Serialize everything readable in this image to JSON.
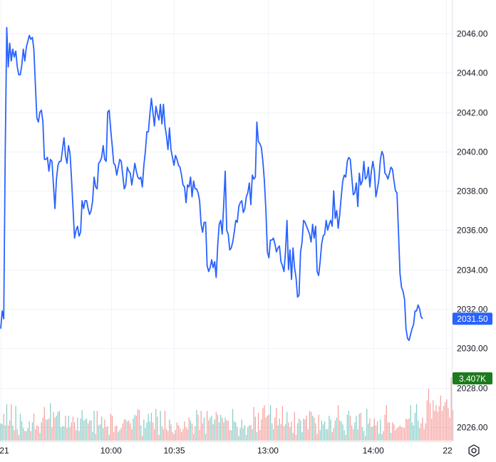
{
  "chart_data": {
    "type": "line",
    "title": "",
    "xlabel": "",
    "ylabel": "",
    "ylim": [
      2025.0,
      2047.5
    ],
    "y_ticks": [
      "2026.00",
      "2028.00",
      "2030.00",
      "2032.00",
      "2034.00",
      "2036.00",
      "2038.00",
      "2040.00",
      "2042.00",
      "2044.00",
      "2046.00"
    ],
    "x_ticks": [
      "21",
      "10:00",
      "10:35",
      "13:00",
      "14:00",
      "22"
    ],
    "grid": true,
    "legend": "none",
    "series": [
      {
        "kind": "price",
        "color": "#2962ff",
        "values": [
          2031.0,
          2031.9,
          2031.5,
          2040.0,
          2046.3,
          2044.3,
          2045.5,
          2044.6,
          2045.2,
          2044.8,
          2045.1,
          2044.3,
          2043.9,
          2043.9,
          2044.4,
          2045.2,
          2044.6,
          2045.3,
          2045.6,
          2045.9,
          2045.7,
          2045.8,
          2045.2,
          2043.4,
          2041.7,
          2041.5,
          2042.0,
          2042.1,
          2041.5,
          2039.6,
          2039.6,
          2039.7,
          2039.0,
          2039.6,
          2039.5,
          2038.3,
          2037.1,
          2038.6,
          2039.3,
          2039.5,
          2039.5,
          2040.1,
          2040.7,
          2039.8,
          2039.4,
          2040.3,
          2039.9,
          2038.6,
          2037.1,
          2035.6,
          2036.0,
          2036.2,
          2035.7,
          2035.9,
          2037.5,
          2037.1,
          2037.5,
          2037.5,
          2037.1,
          2036.8,
          2037.0,
          2037.5,
          2038.7,
          2038.2,
          2038.1,
          2039.4,
          2039.5,
          2039.7,
          2040.3,
          2039.6,
          2039.5,
          2042.0,
          2042.1,
          2041.1,
          2040.3,
          2039.4,
          2039.3,
          2038.8,
          2039.2,
          2039.6,
          2039.5,
          2038.8,
          2038.1,
          2038.3,
          2039.2,
          2039.0,
          2038.9,
          2038.3,
          2038.8,
          2039.4,
          2039.0,
          2038.7,
          2038.6,
          2038.7,
          2038.2,
          2039.3,
          2040.0,
          2041.0,
          2041.0,
          2041.9,
          2042.7,
          2042.0,
          2041.3,
          2042.3,
          2041.9,
          2041.6,
          2042.4,
          2041.4,
          2042.4,
          2041.3,
          2040.8,
          2040.1,
          2041.2,
          2040.1,
          2039.7,
          2039.3,
          2039.8,
          2039.6,
          2039.3,
          2039.2,
          2038.8,
          2038.3,
          2038.2,
          2037.4,
          2038.3,
          2038.2,
          2038.7,
          2037.7,
          2038.5,
          2038.1,
          2038.1,
          2037.9,
          2037.5,
          2036.3,
          2035.9,
          2036.4,
          2036.4,
          2034.2,
          2033.9,
          2034.1,
          2034.5,
          2034.1,
          2034.4,
          2033.6,
          2035.2,
          2036.3,
          2036.5,
          2035.8,
          2037.3,
          2039.0,
          2036.0,
          2035.8,
          2035.0,
          2035.1,
          2035.4,
          2035.9,
          2036.5,
          2036.4,
          2037.2,
          2037.4,
          2037.5,
          2036.9,
          2037.1,
          2037.7,
          2037.9,
          2038.4,
          2037.3,
          2038.8,
          2038.6,
          2038.7,
          2041.5,
          2040.5,
          2040.4,
          2040.2,
          2039.5,
          2038.5,
          2037.0,
          2034.9,
          2034.6,
          2035.5,
          2035.5,
          2035.6,
          2035.3,
          2034.9,
          2035.1,
          2035.2,
          2034.4,
          2034.2,
          2033.9,
          2034.9,
          2036.5,
          2034.0,
          2035.0,
          2033.5,
          2035.1,
          2034.1,
          2033.6,
          2032.6,
          2032.7,
          2034.9,
          2035.4,
          2036.5,
          2036.4,
          2036.2,
          2036.0,
          2035.8,
          2035.4,
          2036.3,
          2035.6,
          2036.2,
          2033.9,
          2033.7,
          2034.4,
          2035.3,
          2035.7,
          2035.8,
          2036.5,
          2036.0,
          2036.3,
          2036.5,
          2036.2,
          2038.0,
          2036.6,
          2037.0,
          2036.1,
          2036.8,
          2037.7,
          2038.5,
          2038.8,
          2038.7,
          2039.5,
          2039.7,
          2039.6,
          2038.7,
          2037.8,
          2037.9,
          2038.4,
          2037.2,
          2038.9,
          2038.3,
          2038.5,
          2039.5,
          2038.6,
          2038.7,
          2039.2,
          2038.2,
          2039.0,
          2039.5,
          2039.0,
          2037.7,
          2038.1,
          2038.6,
          2039.6,
          2040.0,
          2039.8,
          2038.9,
          2038.8,
          2038.6,
          2038.9,
          2039.2,
          2039.1,
          2038.5,
          2038.0,
          2037.9,
          2035.9,
          2033.8,
          2033.1,
          2032.9,
          2032.5,
          2031.0,
          2030.5,
          2030.4,
          2030.7,
          2031.0,
          2031.2,
          2031.9,
          2031.9,
          2032.2,
          2032.0,
          2031.6,
          2031.5
        ]
      },
      {
        "kind": "volume",
        "up_color": "#26a69a",
        "down_color": "#ef5350",
        "values": [
          18,
          17,
          28,
          16,
          38,
          16,
          21,
          38,
          16,
          11,
          36,
          12,
          6,
          28,
          20,
          13,
          10,
          10,
          13,
          20,
          10,
          19,
          28,
          12,
          16,
          15,
          8,
          19,
          24,
          35,
          22,
          22,
          23,
          39,
          14,
          30,
          24,
          26,
          30,
          31,
          14,
          15,
          15,
          26,
          13,
          26,
          14,
          19,
          25,
          19,
          11,
          24,
          10,
          23,
          32,
          21,
          22,
          23,
          18,
          21,
          21,
          9,
          31,
          7,
          31,
          16,
          17,
          25,
          13,
          22,
          14,
          15,
          6,
          28,
          26,
          9,
          15,
          16,
          9,
          11,
          13,
          18,
          22,
          22,
          20,
          21,
          18,
          12,
          23,
          27,
          26,
          33,
          32,
          16,
          5,
          22,
          13,
          19,
          28,
          20,
          29,
          19,
          12,
          33,
          25,
          6,
          31,
          15,
          12,
          31,
          12,
          10,
          22,
          17,
          9,
          7,
          11,
          19,
          16,
          13,
          9,
          12,
          20,
          14,
          12,
          24,
          21,
          18,
          7,
          15,
          32,
          27,
          11,
          31,
          18,
          24,
          7,
          31,
          21,
          24,
          26,
          17,
          22,
          30,
          27,
          19,
          27,
          24,
          19,
          24,
          21,
          21,
          11,
          11,
          33,
          20,
          19,
          14,
          5,
          13,
          22,
          13,
          16,
          6,
          14,
          16,
          16,
          12,
          35,
          25,
          9,
          29,
          11,
          22,
          34,
          37,
          24,
          26,
          27,
          37,
          18,
          12,
          24,
          34,
          16,
          23,
          17,
          36,
          15,
          17,
          30,
          19,
          14,
          20,
          8,
          30,
          6,
          18,
          23,
          21,
          9,
          23,
          22,
          26,
          12,
          31,
          30,
          26,
          24,
          18,
          7,
          27,
          11,
          21,
          17,
          20,
          12,
          12,
          26,
          22,
          9,
          13,
          21,
          24,
          37,
          21,
          20,
          17,
          11,
          6,
          27,
          31,
          26,
          16,
          12,
          19,
          26,
          12,
          28,
          29,
          14,
          10,
          5,
          33,
          18,
          23,
          14,
          15,
          23,
          16,
          20,
          7,
          22,
          7,
          10,
          27,
          37,
          19,
          19,
          8,
          19,
          17,
          11,
          13,
          14,
          16,
          14,
          14,
          13,
          23,
          22,
          23,
          37,
          19,
          16,
          29,
          38,
          21,
          13,
          18,
          24,
          12,
          18,
          42,
          54,
          39,
          23,
          42,
          31,
          37,
          30,
          36,
          47,
          31,
          36,
          40,
          43,
          34,
          24,
          66,
          32
        ]
      }
    ],
    "price_badge": {
      "value": "2031.50",
      "color": "#2962ff"
    },
    "volume_badge": {
      "value": "3.407K",
      "color": "#1e7a1e"
    }
  },
  "icons": {
    "settings": "gear-icon"
  },
  "colors": {
    "grid": "#f0f3fa",
    "text": "#131722",
    "background": "#ffffff"
  }
}
